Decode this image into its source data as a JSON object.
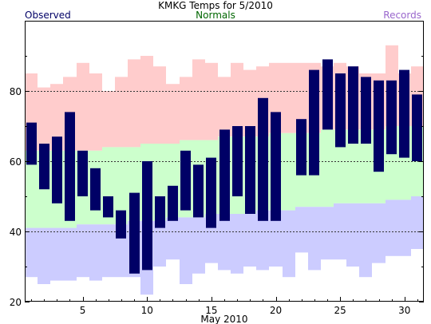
{
  "chart_data": {
    "type": "bar",
    "title": "KMKG Temps for 5/2010",
    "xlabel": "May 2010",
    "ylabel": "",
    "xlim": [
      0.5,
      31.5
    ],
    "ylim": [
      20,
      100
    ],
    "x_ticks": [
      5,
      10,
      15,
      20,
      25,
      30
    ],
    "y_ticks": [
      20,
      40,
      60,
      80
    ],
    "gridlines_y": [
      40,
      60,
      80
    ],
    "legend": {
      "observed": "Observed",
      "normals": "Normals",
      "records": "Records"
    },
    "colors": {
      "observed": "#000066",
      "normals_band": "#ccffcc",
      "records_high_band": "#ffcccc",
      "records_low_band": "#ccccff",
      "normals_text": "#006600",
      "records_text": "#9966cc",
      "observed_text": "#000066",
      "grid": "#333333"
    },
    "days": [
      1,
      2,
      3,
      4,
      5,
      6,
      7,
      8,
      9,
      10,
      11,
      12,
      13,
      14,
      15,
      16,
      17,
      18,
      19,
      20,
      21,
      22,
      23,
      24,
      25,
      26,
      27,
      28,
      29,
      30,
      31
    ],
    "series": [
      {
        "name": "Observed",
        "key": "observed",
        "high": [
          71,
          65,
          67,
          74,
          63,
          58,
          50,
          46,
          51,
          60,
          50,
          53,
          63,
          59,
          61,
          69,
          70,
          70,
          78,
          74,
          57,
          72,
          86,
          89,
          85,
          87,
          84,
          83,
          83,
          86,
          79
        ],
        "low": [
          59,
          52,
          48,
          43,
          50,
          46,
          44,
          38,
          28,
          29,
          41,
          43,
          46,
          44,
          41,
          43,
          50,
          45,
          43,
          43,
          57,
          56,
          56,
          69,
          64,
          65,
          65,
          57,
          62,
          61,
          60
        ]
      },
      {
        "name": "Normals",
        "key": "normals",
        "high": [
          63,
          63,
          63,
          63,
          63,
          63,
          64,
          64,
          64,
          65,
          65,
          65,
          66,
          66,
          66,
          67,
          67,
          67,
          67,
          68,
          68,
          68,
          68,
          69,
          69,
          69,
          69,
          69,
          70,
          70,
          70
        ],
        "low": [
          41,
          41,
          41,
          41,
          42,
          42,
          42,
          42,
          43,
          43,
          43,
          44,
          44,
          44,
          45,
          45,
          45,
          45,
          46,
          46,
          46,
          47,
          47,
          47,
          48,
          48,
          48,
          48,
          49,
          49,
          50
        ]
      },
      {
        "name": "Records",
        "key": "records",
        "high": [
          85,
          81,
          82,
          84,
          88,
          85,
          80,
          84,
          89,
          90,
          87,
          82,
          84,
          89,
          88,
          84,
          88,
          86,
          87,
          88,
          88,
          88,
          88,
          87,
          88,
          87,
          85,
          85,
          93,
          85,
          87
        ],
        "low": [
          27,
          25,
          26,
          26,
          27,
          26,
          27,
          27,
          27,
          22,
          30,
          32,
          25,
          28,
          31,
          29,
          28,
          30,
          29,
          30,
          27,
          34,
          29,
          32,
          32,
          30,
          27,
          31,
          33,
          33,
          35
        ]
      }
    ]
  }
}
